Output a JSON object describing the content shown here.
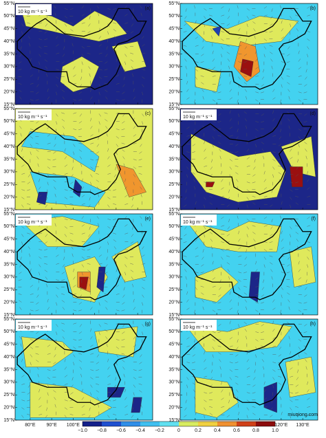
{
  "figure": {
    "panels": [
      {
        "label": "(a)",
        "ref_vector": "10 kg m⁻¹ s⁻¹"
      },
      {
        "label": "(b)"
      },
      {
        "label": "(c)",
        "ref_vector": "10 kg m⁻¹ s⁻¹"
      },
      {
        "label": "(d)",
        "ref_vector": "10 kg m⁻¹ s⁻¹"
      },
      {
        "label": "(e)",
        "ref_vector": "10 kg m⁻¹ s⁻¹"
      },
      {
        "label": "(f)",
        "ref_vector": "10 kg m⁻¹ s⁻¹"
      },
      {
        "label": "(g)",
        "ref_vector": "10 kg m⁻¹ s⁻¹"
      },
      {
        "label": "(h)",
        "ref_vector": "10 kg m⁻¹ s⁻¹"
      }
    ],
    "ylim": [
      15,
      55
    ],
    "yticks": [
      {
        "value": 15,
        "label": "15°N"
      },
      {
        "value": 20,
        "label": "20°N"
      },
      {
        "value": 25,
        "label": "25°N"
      },
      {
        "value": 30,
        "label": "30°N"
      },
      {
        "value": 35,
        "label": "35°N"
      },
      {
        "value": 40,
        "label": "40°N"
      },
      {
        "value": 45,
        "label": "45°N"
      },
      {
        "value": 50,
        "label": "50°N"
      },
      {
        "value": 55,
        "label": "55°N"
      }
    ],
    "xlim": [
      73,
      137
    ],
    "xticks": [
      {
        "value": 80,
        "label": "80°E"
      },
      {
        "value": 90,
        "label": "90°E"
      },
      {
        "value": 100,
        "label": "100°E"
      },
      {
        "value": 110,
        "label": "110°E"
      },
      {
        "value": 120,
        "label": "120°E"
      },
      {
        "value": 130,
        "label": "130°E"
      }
    ],
    "colorbar": {
      "ticks": [
        {
          "value": -1.0,
          "label": "−1.0"
        },
        {
          "value": -0.8,
          "label": "−0.8"
        },
        {
          "value": -0.6,
          "label": "−0.6"
        },
        {
          "value": -0.4,
          "label": "−0.4"
        },
        {
          "value": -0.2,
          "label": "−0.2"
        },
        0,
        {
          "value": 0.2,
          "label": "0.2"
        },
        {
          "value": 0.4,
          "label": "0.4"
        },
        {
          "value": 0.6,
          "label": "0.6"
        },
        {
          "value": 0.8,
          "label": "0.8"
        },
        {
          "value": 1.0,
          "label": "1.0"
        }
      ],
      "colors": [
        "#14208a",
        "#1f4fd0",
        "#2f8ee8",
        "#40c0f0",
        "#60e0f0",
        "#d8ec60",
        "#f0d040",
        "#f09030",
        "#d04018",
        "#8c0c0c"
      ]
    },
    "watermark": "miuqiong.com"
  }
}
